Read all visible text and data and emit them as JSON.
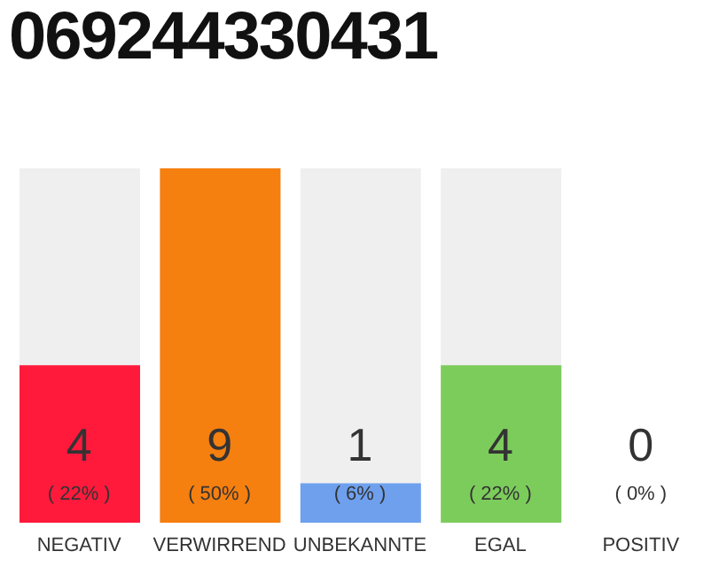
{
  "chart_data": {
    "type": "bar",
    "title": "069244330431",
    "categories": [
      "NEGATIV",
      "VERWIRREND",
      "UNBEKANNTE",
      "EGAL",
      "POSITIV"
    ],
    "values": [
      4,
      9,
      1,
      4,
      0
    ],
    "colors": [
      "#ff1a3c",
      "#f57f0f",
      "#6ea0ee",
      "#7ccc5c",
      "#7ccc5c"
    ],
    "ylim": [
      0,
      9
    ],
    "data_labels": true,
    "grid": false,
    "legend": false,
    "annotations": [
      "( 22% )",
      "( 50% )",
      "( 6% )",
      "( 22% )",
      "( 0% )"
    ]
  }
}
